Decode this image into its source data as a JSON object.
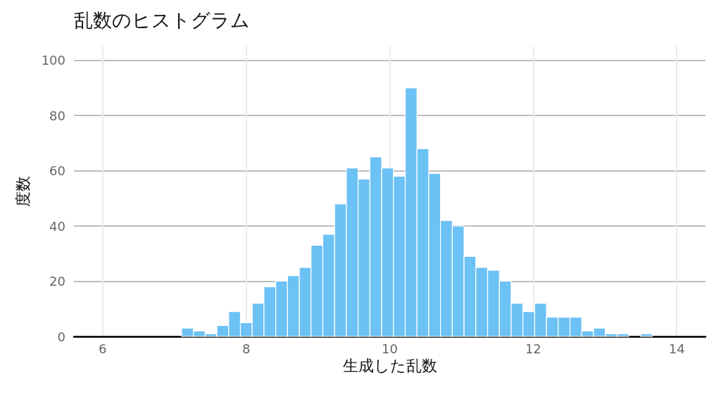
{
  "chart_data": {
    "type": "histogram",
    "title": "乱数のヒストグラム",
    "xlabel": "生成した乱数",
    "ylabel": "度数",
    "bins": [
      7.1,
      7.264,
      7.428,
      7.592,
      7.756,
      7.92,
      8.084,
      8.248,
      8.412,
      8.576,
      8.74,
      8.904,
      9.068,
      9.232,
      9.396,
      9.56,
      9.724,
      9.888,
      10.052,
      10.216,
      10.38,
      10.544,
      10.708,
      10.872,
      11.036,
      11.2,
      11.364,
      11.528,
      11.692,
      11.856,
      12.02,
      12.184,
      12.348,
      12.512,
      12.676,
      12.84,
      13.004,
      13.168,
      13.332,
      13.496,
      13.66
    ],
    "values": [
      3,
      2,
      1,
      4,
      9,
      5,
      12,
      18,
      20,
      22,
      25,
      33,
      37,
      48,
      61,
      57,
      65,
      61,
      58,
      90,
      68,
      59,
      42,
      40,
      29,
      25,
      24,
      20,
      12,
      9,
      12,
      7,
      7,
      7,
      2,
      3,
      1,
      1,
      0,
      1
    ],
    "color": "#6cc1f5",
    "xlim": [
      5.6,
      14.4
    ],
    "xticks": [
      6,
      8,
      10,
      12,
      14
    ],
    "ylim": [
      0,
      105
    ],
    "yticks": [
      0,
      20,
      40,
      60,
      80,
      100
    ],
    "grid": true
  }
}
